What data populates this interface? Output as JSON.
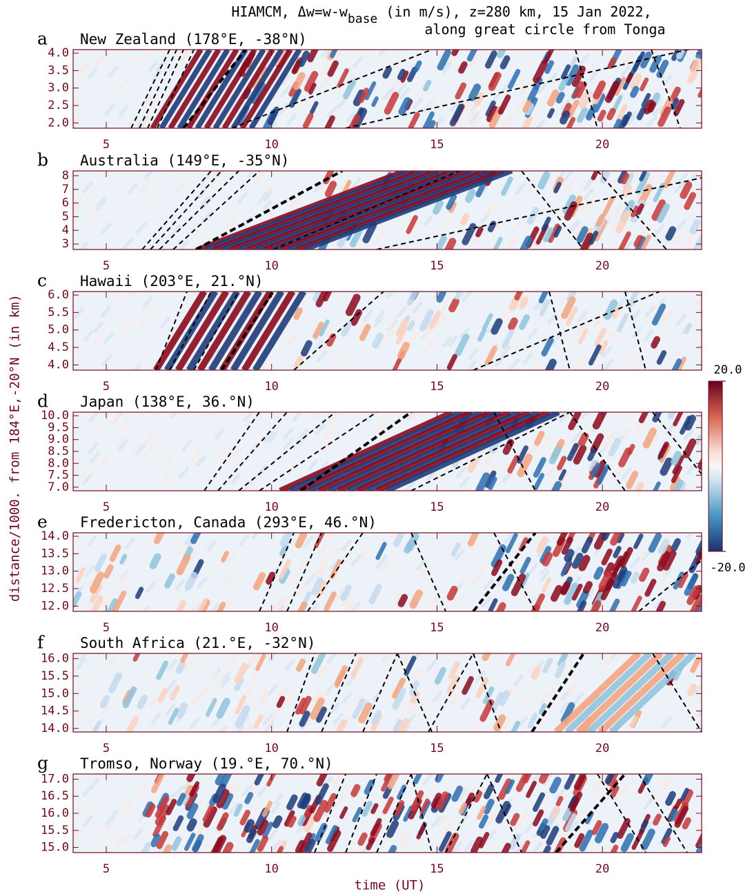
{
  "title": [
    "HIAMCM, Δw=w-w",
    "base",
    " (in m/s), z=280 km, 15 Jan 2022,",
    "along great circle from Tonga"
  ],
  "xlabel": "time (UT)",
  "ylabel": "distance/1000. from 184°E,-20°N (in km)",
  "colorbar": {
    "lim": [
      -20,
      20
    ],
    "ticks": [
      {
        "value": 20,
        "label": "20.0"
      },
      {
        "value": -20,
        "label": "-20.0"
      }
    ]
  },
  "chart_data": [
    {
      "type": "heatmap",
      "panel": "a",
      "title": "New Zealand (178°E, -38°N)",
      "xlim": [
        4,
        23
      ],
      "xticks": [
        5,
        10,
        15,
        20
      ],
      "ylim": [
        1.85,
        4.1
      ],
      "yticks": [
        {
          "value": 2,
          "label": "2.0"
        },
        2.5,
        {
          "value": 3,
          "label": "3.0"
        },
        3.5,
        {
          "value": 4,
          "label": "4.0"
        }
      ]
    },
    {
      "type": "heatmap",
      "panel": "b",
      "title": "Australia (149°E, -35°N)",
      "xlim": [
        4,
        23
      ],
      "xticks": [
        5,
        10,
        15,
        20
      ],
      "ylim": [
        2.6,
        8.35
      ],
      "yticks": [
        3,
        4,
        5,
        6,
        7,
        8
      ]
    },
    {
      "type": "heatmap",
      "panel": "c",
      "title": "Hawaii (203°E, 21.°N)",
      "xlim": [
        4,
        23
      ],
      "xticks": [
        5,
        10,
        15,
        20
      ],
      "ylim": [
        3.85,
        6.1
      ],
      "yticks": [
        {
          "value": 4,
          "label": "4.0"
        },
        4.5,
        {
          "value": 5,
          "label": "5.0"
        },
        5.5,
        {
          "value": 6,
          "label": "6.0"
        }
      ]
    },
    {
      "type": "heatmap",
      "panel": "d",
      "title": "Japan (138°E, 36.°N)",
      "xlim": [
        4,
        23
      ],
      "xticks": [
        5,
        10,
        15,
        20
      ],
      "ylim": [
        6.85,
        10.15
      ],
      "yticks": [
        {
          "value": 7,
          "label": "7.0"
        },
        7.5,
        {
          "value": 8,
          "label": "8.0"
        },
        8.5,
        {
          "value": 9,
          "label": "9.0"
        },
        9.5,
        {
          "value": 10,
          "label": "10.0"
        }
      ]
    },
    {
      "type": "heatmap",
      "panel": "e",
      "title": "Fredericton, Canada (293°E, 46.°N)",
      "xlim": [
        4,
        23
      ],
      "xticks": [
        5,
        10,
        15,
        20
      ],
      "ylim": [
        11.85,
        14.1
      ],
      "yticks": [
        {
          "value": 12,
          "label": "12.0"
        },
        12.5,
        {
          "value": 13,
          "label": "13.0"
        },
        13.5,
        {
          "value": 14,
          "label": "14.0"
        }
      ]
    },
    {
      "type": "heatmap",
      "panel": "f",
      "title": "South Africa (21.°E, -32°N)",
      "xlim": [
        4,
        23
      ],
      "xticks": [
        5,
        10,
        15,
        20
      ],
      "ylim": [
        13.9,
        16.15
      ],
      "yticks": [
        {
          "value": 14,
          "label": "14.0"
        },
        14.5,
        {
          "value": 15,
          "label": "15.0"
        },
        15.5,
        {
          "value": 16,
          "label": "16.0"
        }
      ]
    },
    {
      "type": "heatmap",
      "panel": "g",
      "title": "Tromso, Norway (19.°E, 70.°N)",
      "xlim": [
        4,
        23
      ],
      "xticks": [
        5,
        10,
        15,
        20
      ],
      "ylim": [
        14.85,
        17.15
      ],
      "yticks": [
        {
          "value": 15,
          "label": "15.0"
        },
        15.5,
        {
          "value": 16,
          "label": "16.0"
        },
        16.5,
        {
          "value": 17,
          "label": "17.0"
        }
      ]
    }
  ]
}
